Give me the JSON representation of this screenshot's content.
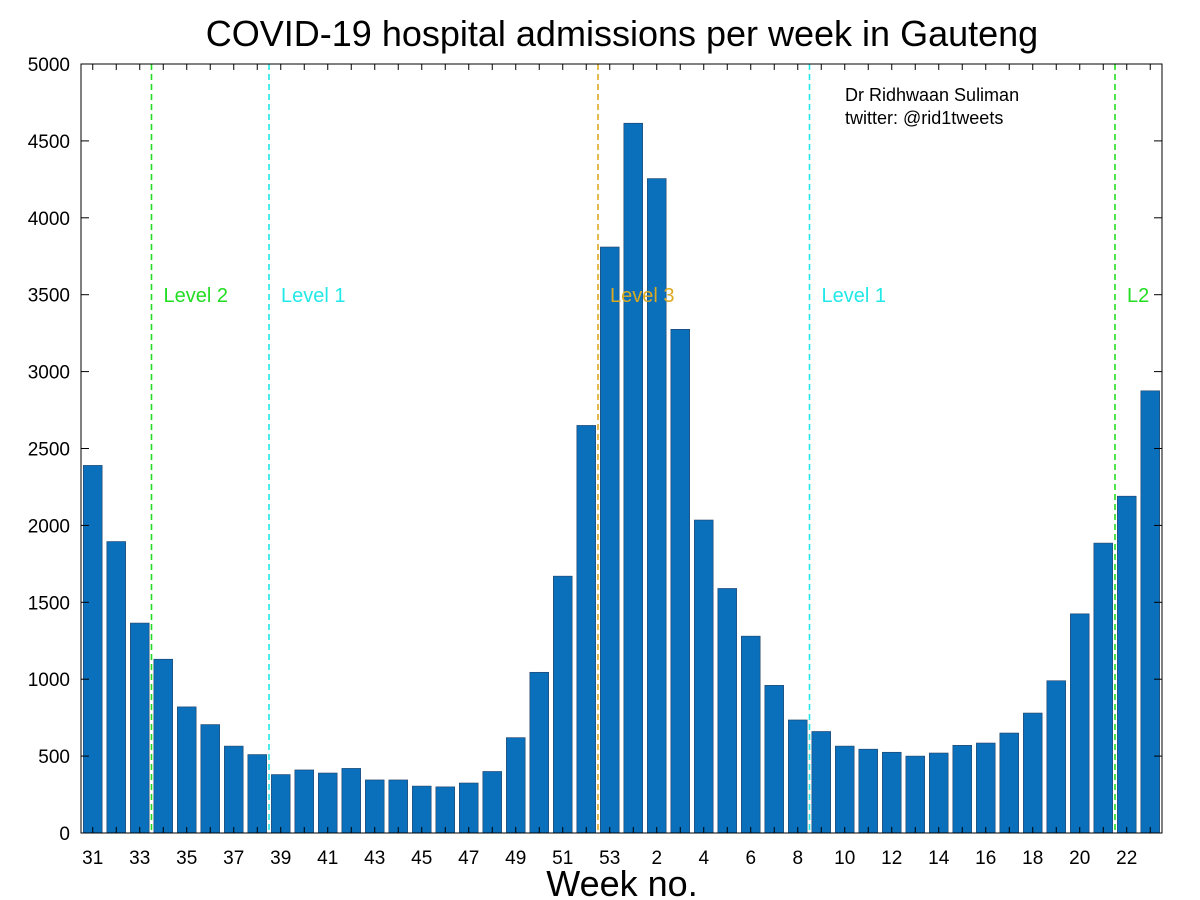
{
  "chart_data": {
    "type": "bar",
    "title": "COVID-19 hospital admissions per week in Gauteng",
    "xlabel": "Week no.",
    "ylabel": "",
    "ylim": [
      0,
      5000
    ],
    "yticks": [
      0,
      500,
      1000,
      1500,
      2000,
      2500,
      3000,
      3500,
      4000,
      4500,
      5000
    ],
    "xtick_labels": [
      "31",
      "33",
      "35",
      "37",
      "39",
      "41",
      "43",
      "45",
      "47",
      "49",
      "51",
      "53",
      "2",
      "4",
      "6",
      "8",
      "10",
      "12",
      "14",
      "16",
      "18",
      "20",
      "22"
    ],
    "categories": [
      "31",
      "32",
      "33",
      "34",
      "35",
      "36",
      "37",
      "38",
      "39",
      "40",
      "41",
      "42",
      "43",
      "44",
      "45",
      "46",
      "47",
      "48",
      "49",
      "50",
      "51",
      "52",
      "53",
      "1",
      "2",
      "3",
      "4",
      "5",
      "6",
      "7",
      "8",
      "9",
      "10",
      "11",
      "12",
      "13",
      "14",
      "15",
      "16",
      "17",
      "18",
      "19",
      "20",
      "21",
      "22",
      "23"
    ],
    "values": [
      2390,
      1895,
      1365,
      1130,
      820,
      705,
      565,
      510,
      380,
      410,
      390,
      420,
      345,
      345,
      305,
      300,
      325,
      400,
      620,
      1045,
      1670,
      2650,
      3810,
      4615,
      4255,
      3275,
      2035,
      1590,
      1280,
      960,
      735,
      660,
      565,
      545,
      525,
      500,
      520,
      570,
      585,
      650,
      780,
      990,
      1425,
      1885,
      2190,
      2875
    ],
    "bar_color": "#0a70bb",
    "grid": false,
    "annotations": [
      "Dr Ridhwaan Suliman",
      "twitter: @rid1tweets"
    ],
    "levels": [
      {
        "label": "Level 2",
        "x": 33.5,
        "color": "#22dd22"
      },
      {
        "label": "Level 1",
        "x": 38.5,
        "color": "#22e8e8"
      },
      {
        "label": "Level 3",
        "x": 52.5,
        "color": "#dcaa22"
      },
      {
        "label": "Level 1",
        "x": 8.5,
        "color": "#22e8e8"
      },
      {
        "label": "L2",
        "x": 21.5,
        "color": "#22dd22"
      }
    ]
  }
}
